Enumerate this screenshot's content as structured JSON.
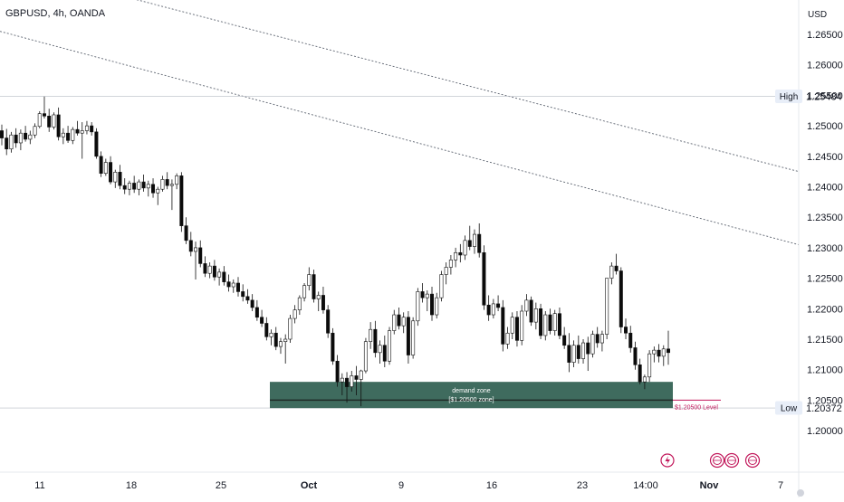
{
  "symbol": "GBPUSD, 4h, OANDA",
  "currency": "USD",
  "high_label": "High",
  "high_value": "1.25484",
  "low_label": "Low",
  "low_value": "1.20372",
  "zone_title": "demand zone",
  "zone_sub": "[$1.20500 zone]",
  "level_label": "$1.20500 Level",
  "colors": {
    "up": "#ffffff",
    "down": "#0b0b0b",
    "zone_fill": "#3f6b5e",
    "zone_line": "#1f2a27",
    "level_line": "#c2185b",
    "axis_text": "#131722",
    "grid": "#b8bcc4",
    "badge_bg": "#e8eef8"
  },
  "chart_data": {
    "type": "candlestick",
    "ylim": [
      1.195,
      1.268
    ],
    "y_ticks": [
      "1.26500",
      "1.26000",
      "1.25500",
      "1.25000",
      "1.24500",
      "1.24000",
      "1.23500",
      "1.23000",
      "1.22500",
      "1.22000",
      "1.21500",
      "1.21000",
      "1.20500",
      "1.20000"
    ],
    "x_ticks": [
      "11",
      "18",
      "25",
      "Oct",
      "9",
      "16",
      "23",
      "14:00",
      "Nov",
      "7"
    ],
    "high": 1.25484,
    "low": 1.20372,
    "demand_zone": [
      1.2037,
      1.208
    ],
    "level": 1.205,
    "trendlines": [
      {
        "from": [
          0.0,
          1.2765
        ],
        "to": [
          1.0,
          1.2425
        ]
      },
      {
        "from": [
          0.0,
          1.2655
        ],
        "to": [
          1.0,
          1.2305
        ]
      }
    ],
    "candles_ohlc": [
      [
        1.2492,
        1.2502,
        1.2468,
        1.248
      ],
      [
        1.248,
        1.2495,
        1.2452,
        1.2462
      ],
      [
        1.2462,
        1.249,
        1.2456,
        1.2485
      ],
      [
        1.2485,
        1.2496,
        1.2464,
        1.2472
      ],
      [
        1.2472,
        1.2494,
        1.246,
        1.2488
      ],
      [
        1.2488,
        1.25,
        1.2474,
        1.2478
      ],
      [
        1.2478,
        1.2492,
        1.247,
        1.2485
      ],
      [
        1.2485,
        1.2504,
        1.248,
        1.2499
      ],
      [
        1.2499,
        1.2524,
        1.2496,
        1.252
      ],
      [
        1.252,
        1.2548,
        1.2512,
        1.2516
      ],
      [
        1.2516,
        1.2528,
        1.249,
        1.2498
      ],
      [
        1.2498,
        1.2522,
        1.2494,
        1.2518
      ],
      [
        1.2518,
        1.253,
        1.2476,
        1.2482
      ],
      [
        1.2482,
        1.2496,
        1.247,
        1.2488
      ],
      [
        1.2488,
        1.25,
        1.2472,
        1.2476
      ],
      [
        1.2476,
        1.2498,
        1.247,
        1.2494
      ],
      [
        1.2494,
        1.2508,
        1.2484,
        1.2488
      ],
      [
        1.2488,
        1.2506,
        1.2446,
        1.2492
      ],
      [
        1.2492,
        1.2508,
        1.2486,
        1.25
      ],
      [
        1.25,
        1.2506,
        1.2484,
        1.249
      ],
      [
        1.249,
        1.2496,
        1.2446,
        1.245
      ],
      [
        1.245,
        1.2458,
        1.2416,
        1.2422
      ],
      [
        1.2422,
        1.2446,
        1.2418,
        1.244
      ],
      [
        1.244,
        1.245,
        1.2404,
        1.2408
      ],
      [
        1.2408,
        1.2428,
        1.2398,
        1.2424
      ],
      [
        1.2424,
        1.2436,
        1.2396,
        1.2402
      ],
      [
        1.2402,
        1.2414,
        1.2388,
        1.2396
      ],
      [
        1.2396,
        1.241,
        1.2386,
        1.2406
      ],
      [
        1.2406,
        1.2418,
        1.239,
        1.2396
      ],
      [
        1.2396,
        1.2412,
        1.2386,
        1.2408
      ],
      [
        1.2408,
        1.242,
        1.2392,
        1.2398
      ],
      [
        1.2398,
        1.241,
        1.2384,
        1.2404
      ],
      [
        1.2404,
        1.2414,
        1.2382,
        1.239
      ],
      [
        1.239,
        1.24,
        1.237,
        1.2396
      ],
      [
        1.2396,
        1.2418,
        1.2392,
        1.2412
      ],
      [
        1.2412,
        1.2424,
        1.2396,
        1.2402
      ],
      [
        1.2402,
        1.2412,
        1.2362,
        1.2404
      ],
      [
        1.2404,
        1.2422,
        1.2396,
        1.2418
      ],
      [
        1.2418,
        1.2424,
        1.2326,
        1.2336
      ],
      [
        1.2336,
        1.235,
        1.2306,
        1.2312
      ],
      [
        1.2312,
        1.2326,
        1.2286,
        1.2294
      ],
      [
        1.2294,
        1.231,
        1.2248,
        1.23
      ],
      [
        1.23,
        1.2312,
        1.2268,
        1.2274
      ],
      [
        1.2274,
        1.2286,
        1.2252,
        1.2258
      ],
      [
        1.2258,
        1.2276,
        1.225,
        1.227
      ],
      [
        1.227,
        1.228,
        1.2246,
        1.2252
      ],
      [
        1.2252,
        1.2266,
        1.2238,
        1.226
      ],
      [
        1.226,
        1.227,
        1.2238,
        1.2244
      ],
      [
        1.2244,
        1.2256,
        1.2228,
        1.2236
      ],
      [
        1.2236,
        1.2248,
        1.2226,
        1.2242
      ],
      [
        1.2242,
        1.2252,
        1.222,
        1.2228
      ],
      [
        1.2228,
        1.224,
        1.2212,
        1.222
      ],
      [
        1.222,
        1.2232,
        1.2208,
        1.2214
      ],
      [
        1.2214,
        1.2224,
        1.2196,
        1.2202
      ],
      [
        1.2202,
        1.2214,
        1.218,
        1.2186
      ],
      [
        1.2186,
        1.2198,
        1.217,
        1.2176
      ],
      [
        1.2176,
        1.2186,
        1.2148,
        1.2154
      ],
      [
        1.2154,
        1.2166,
        1.214,
        1.216
      ],
      [
        1.216,
        1.217,
        1.2132,
        1.2138
      ],
      [
        1.2138,
        1.2152,
        1.2126,
        1.2146
      ],
      [
        1.2146,
        1.2158,
        1.211,
        1.215
      ],
      [
        1.215,
        1.219,
        1.2144,
        1.2184
      ],
      [
        1.2184,
        1.2206,
        1.2176,
        1.2198
      ],
      [
        1.2198,
        1.2222,
        1.219,
        1.2218
      ],
      [
        1.2218,
        1.2242,
        1.2212,
        1.2238
      ],
      [
        1.2238,
        1.2268,
        1.223,
        1.2256
      ],
      [
        1.2256,
        1.2264,
        1.221,
        1.2216
      ],
      [
        1.2216,
        1.2228,
        1.2196,
        1.2222
      ],
      [
        1.2222,
        1.2236,
        1.2192,
        1.2198
      ],
      [
        1.2198,
        1.2206,
        1.2152,
        1.216
      ],
      [
        1.216,
        1.2168,
        1.2108,
        1.2114
      ],
      [
        1.2114,
        1.2124,
        1.2072,
        1.208
      ],
      [
        1.208,
        1.2094,
        1.2058,
        1.2086
      ],
      [
        1.2086,
        1.2096,
        1.2046,
        1.2072
      ],
      [
        1.2072,
        1.2098,
        1.2064,
        1.209
      ],
      [
        1.209,
        1.2106,
        1.2058,
        1.2084
      ],
      [
        1.2084,
        1.21,
        1.204,
        1.2098
      ],
      [
        1.2098,
        1.2152,
        1.2094,
        1.2146
      ],
      [
        1.2146,
        1.2178,
        1.2134,
        1.2166
      ],
      [
        1.2166,
        1.218,
        1.212,
        1.2128
      ],
      [
        1.2128,
        1.2148,
        1.211,
        1.214
      ],
      [
        1.214,
        1.2156,
        1.2104,
        1.2114
      ],
      [
        1.2114,
        1.217,
        1.2108,
        1.2164
      ],
      [
        1.2164,
        1.2198,
        1.2158,
        1.219
      ],
      [
        1.219,
        1.2202,
        1.2166,
        1.2172
      ],
      [
        1.2172,
        1.2194,
        1.216,
        1.2186
      ],
      [
        1.2186,
        1.2196,
        1.211,
        1.2124
      ],
      [
        1.2124,
        1.2186,
        1.2118,
        1.218
      ],
      [
        1.218,
        1.2234,
        1.2172,
        1.2228
      ],
      [
        1.2228,
        1.2242,
        1.221,
        1.2218
      ],
      [
        1.2218,
        1.223,
        1.2196,
        1.2224
      ],
      [
        1.2224,
        1.2236,
        1.218,
        1.219
      ],
      [
        1.219,
        1.2226,
        1.2184,
        1.2218
      ],
      [
        1.2218,
        1.2262,
        1.2212,
        1.2256
      ],
      [
        1.2256,
        1.2276,
        1.224,
        1.2268
      ],
      [
        1.2268,
        1.2288,
        1.2256,
        1.228
      ],
      [
        1.228,
        1.23,
        1.2268,
        1.2292
      ],
      [
        1.2292,
        1.2306,
        1.2276,
        1.2288
      ],
      [
        1.2288,
        1.232,
        1.228,
        1.2312
      ],
      [
        1.2312,
        1.2336,
        1.2296,
        1.2302
      ],
      [
        1.2302,
        1.233,
        1.229,
        1.2322
      ],
      [
        1.2322,
        1.234,
        1.2284,
        1.2292
      ],
      [
        1.2292,
        1.2304,
        1.2198,
        1.2206
      ],
      [
        1.2206,
        1.2222,
        1.218,
        1.219
      ],
      [
        1.219,
        1.2216,
        1.2184,
        1.2208
      ],
      [
        1.2208,
        1.2222,
        1.2196,
        1.2202
      ],
      [
        1.2202,
        1.2214,
        1.213,
        1.2142
      ],
      [
        1.2142,
        1.217,
        1.2134,
        1.216
      ],
      [
        1.216,
        1.2194,
        1.215,
        1.2186
      ],
      [
        1.2186,
        1.2196,
        1.2138,
        1.2148
      ],
      [
        1.2148,
        1.2206,
        1.214,
        1.2196
      ],
      [
        1.2196,
        1.2224,
        1.2188,
        1.2214
      ],
      [
        1.2214,
        1.222,
        1.2172,
        1.2178
      ],
      [
        1.2178,
        1.221,
        1.2166,
        1.22
      ],
      [
        1.22,
        1.2208,
        1.215,
        1.2156
      ],
      [
        1.2156,
        1.2196,
        1.2148,
        1.219
      ],
      [
        1.219,
        1.22,
        1.2158,
        1.2164
      ],
      [
        1.2164,
        1.2198,
        1.2156,
        1.2192
      ],
      [
        1.2192,
        1.2202,
        1.215,
        1.2156
      ],
      [
        1.2156,
        1.217,
        1.2134,
        1.214
      ],
      [
        1.214,
        1.216,
        1.2096,
        1.2112
      ],
      [
        1.2112,
        1.2148,
        1.2104,
        1.214
      ],
      [
        1.214,
        1.2156,
        1.211,
        1.2118
      ],
      [
        1.2118,
        1.215,
        1.211,
        1.2144
      ],
      [
        1.2144,
        1.2154,
        1.2098,
        1.2126
      ],
      [
        1.2126,
        1.2164,
        1.212,
        1.2158
      ],
      [
        1.2158,
        1.217,
        1.2136,
        1.2144
      ],
      [
        1.2144,
        1.2164,
        1.213,
        1.2158
      ],
      [
        1.2158,
        1.222,
        1.215,
        1.225
      ],
      [
        1.225,
        1.2276,
        1.224,
        1.227
      ],
      [
        1.227,
        1.229,
        1.2256,
        1.2262
      ],
      [
        1.2262,
        1.2268,
        1.216,
        1.217
      ],
      [
        1.217,
        1.2184,
        1.215,
        1.216
      ],
      [
        1.216,
        1.2172,
        1.2128,
        1.2136
      ],
      [
        1.2136,
        1.2146,
        1.21,
        1.2108
      ],
      [
        1.2108,
        1.2118,
        1.2076,
        1.208
      ],
      [
        1.208,
        1.2092,
        1.2068,
        1.2088
      ],
      [
        1.2088,
        1.2132,
        1.208,
        1.2126
      ],
      [
        1.2126,
        1.2138,
        1.2112,
        1.2132
      ],
      [
        1.2132,
        1.2142,
        1.2112,
        1.2122
      ],
      [
        1.2122,
        1.214,
        1.2106,
        1.2134
      ],
      [
        1.2134,
        1.2164,
        1.2108,
        1.2128
      ]
    ]
  }
}
